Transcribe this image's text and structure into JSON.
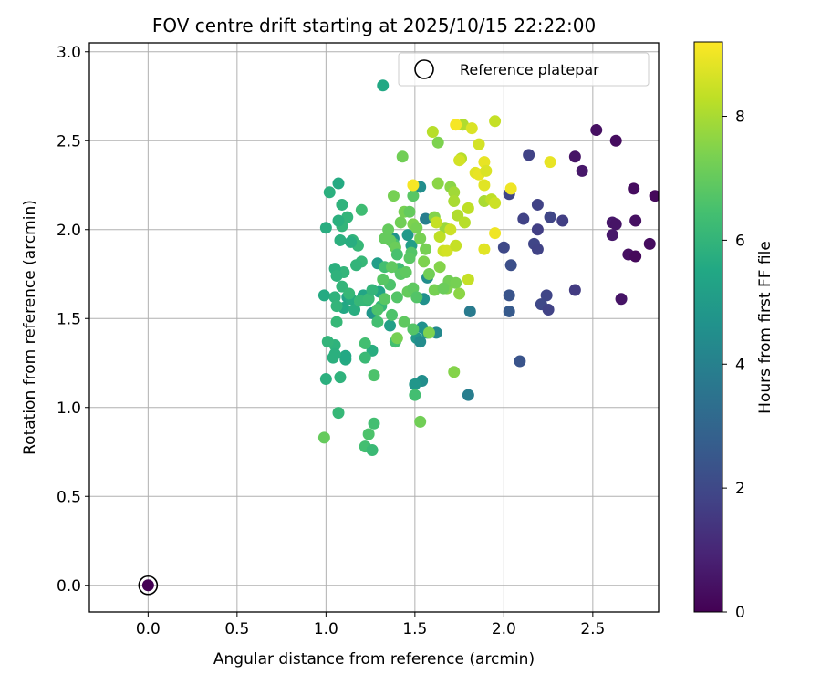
{
  "chart_data": {
    "type": "scatter",
    "title": "FOV centre drift starting at 2025/10/15 22:22:00",
    "xlabel": "Angular distance from reference (arcmin)",
    "ylabel": "Rotation from reference (arcmin)",
    "xlim": [
      -0.33,
      2.87
    ],
    "ylim": [
      -0.15,
      3.05
    ],
    "xticks": [
      "0.0",
      "0.5",
      "1.0",
      "1.5",
      "2.0",
      "2.5"
    ],
    "yticks": [
      "0.0",
      "0.5",
      "1.0",
      "1.5",
      "2.0",
      "2.5",
      "3.0"
    ],
    "grid": true,
    "legend": {
      "location": "top-right",
      "entries": [
        "Reference platepar"
      ]
    },
    "reference_point": {
      "x": 0.0,
      "y": 0.0,
      "hours": 0.0
    },
    "colorbar": {
      "label": "Hours from first FF file",
      "colormap": "viridis",
      "range": [
        0,
        9.2
      ],
      "ticks": [
        "0",
        "2",
        "4",
        "6",
        "8"
      ]
    },
    "series": [
      {
        "marker": "filled-circle",
        "points": [
          [
            2.52,
            2.56,
            0.4
          ],
          [
            2.63,
            2.5,
            0.3
          ],
          [
            2.4,
            2.41,
            0.5
          ],
          [
            2.44,
            2.33,
            0.6
          ],
          [
            2.73,
            2.23,
            0.3
          ],
          [
            2.85,
            2.19,
            0.2
          ],
          [
            2.61,
            2.04,
            0.6
          ],
          [
            2.63,
            2.03,
            0.5
          ],
          [
            2.74,
            2.05,
            0.4
          ],
          [
            2.61,
            1.97,
            0.6
          ],
          [
            2.82,
            1.92,
            0.3
          ],
          [
            2.7,
            1.86,
            0.4
          ],
          [
            2.74,
            1.85,
            0.2
          ],
          [
            2.66,
            1.61,
            0.5
          ],
          [
            2.14,
            2.42,
            1.8
          ],
          [
            2.03,
            2.2,
            1.9
          ],
          [
            2.19,
            2.14,
            1.8
          ],
          [
            2.26,
            2.07,
            1.9
          ],
          [
            2.33,
            2.05,
            1.7
          ],
          [
            2.11,
            2.06,
            1.8
          ],
          [
            2.19,
            2.0,
            1.7
          ],
          [
            2.17,
            1.92,
            1.9
          ],
          [
            2.19,
            1.89,
            1.8
          ],
          [
            2.0,
            1.9,
            2.0
          ],
          [
            2.04,
            1.8,
            2.2
          ],
          [
            2.4,
            1.66,
            1.6
          ],
          [
            2.24,
            1.63,
            1.9
          ],
          [
            2.21,
            1.58,
            2.0
          ],
          [
            2.25,
            1.55,
            1.8
          ],
          [
            2.03,
            1.63,
            2.4
          ],
          [
            2.03,
            1.54,
            2.6
          ],
          [
            2.09,
            1.26,
            2.4
          ],
          [
            1.56,
            2.06,
            3.9
          ],
          [
            1.81,
            1.54,
            3.8
          ],
          [
            1.8,
            1.07,
            3.9
          ],
          [
            1.62,
            1.42,
            4.3
          ],
          [
            1.53,
            2.24,
            4.5
          ],
          [
            1.55,
            1.61,
            4.6
          ],
          [
            1.57,
            1.73,
            4.5
          ],
          [
            1.54,
            1.45,
            4.6
          ],
          [
            1.57,
            1.42,
            4.7
          ],
          [
            1.54,
            1.15,
            4.5
          ],
          [
            1.51,
            1.39,
            4.9
          ],
          [
            1.53,
            1.37,
            4.4
          ],
          [
            1.5,
            1.13,
            4.8
          ],
          [
            1.38,
            1.95,
            4.7
          ],
          [
            1.46,
            1.97,
            4.9
          ],
          [
            1.48,
            1.91,
            5.1
          ],
          [
            1.26,
            1.53,
            4.8
          ],
          [
            1.29,
            1.81,
            5.1
          ],
          [
            1.36,
            1.46,
            5.2
          ],
          [
            1.3,
            1.65,
            5.3
          ],
          [
            1.21,
            1.63,
            5.4
          ],
          [
            1.1,
            1.56,
            5.5
          ],
          [
            1.12,
            1.62,
            5.3
          ],
          [
            1.11,
            1.27,
            5.6
          ],
          [
            1.11,
            1.29,
            5.5
          ],
          [
            1.16,
            1.55,
            5.7
          ],
          [
            1.14,
            1.61,
            5.6
          ],
          [
            1.05,
            1.35,
            5.9
          ],
          [
            1.05,
            1.3,
            5.8
          ],
          [
            1.04,
            1.28,
            5.8
          ],
          [
            1.26,
            1.32,
            5.7
          ],
          [
            1.32,
            2.81,
            5.5
          ],
          [
            1.07,
            2.26,
            5.6
          ],
          [
            1.02,
            2.21,
            5.8
          ],
          [
            1.09,
            2.14,
            5.9
          ],
          [
            1.12,
            2.07,
            6.0
          ],
          [
            1.09,
            2.02,
            6.0
          ],
          [
            1.07,
            2.05,
            5.8
          ],
          [
            1.0,
            2.01,
            5.7
          ],
          [
            1.08,
            1.94,
            5.8
          ],
          [
            1.15,
            1.94,
            6.0
          ],
          [
            1.18,
            1.91,
            6.1
          ],
          [
            1.14,
            1.93,
            5.7
          ],
          [
            1.2,
            1.82,
            6.1
          ],
          [
            1.1,
            1.76,
            6.0
          ],
          [
            1.05,
            1.78,
            5.8
          ],
          [
            1.06,
            1.74,
            5.9
          ],
          [
            1.09,
            1.68,
            6.0
          ],
          [
            1.05,
            1.62,
            5.9
          ],
          [
            0.99,
            1.63,
            5.6
          ],
          [
            1.01,
            1.37,
            6.0
          ],
          [
            1.0,
            1.16,
            5.8
          ],
          [
            1.08,
            1.17,
            5.9
          ],
          [
            1.07,
            0.97,
            6.1
          ],
          [
            1.2,
            2.11,
            6.3
          ],
          [
            1.23,
            1.6,
            6.0
          ],
          [
            1.13,
            1.64,
            6.1
          ],
          [
            1.19,
            1.6,
            6.1
          ],
          [
            1.31,
            1.57,
            6.1
          ],
          [
            1.24,
            1.61,
            6.2
          ],
          [
            1.26,
            1.66,
            6.0
          ],
          [
            1.17,
            1.8,
            6.0
          ],
          [
            1.33,
            1.79,
            6.4
          ],
          [
            1.41,
            1.78,
            6.3
          ],
          [
            1.38,
            1.92,
            6.5
          ],
          [
            1.29,
            1.48,
            6.4
          ],
          [
            1.39,
            1.37,
            6.4
          ],
          [
            1.06,
            1.57,
            6.0
          ],
          [
            1.06,
            1.48,
            6.1
          ],
          [
            1.22,
            1.36,
            6.4
          ],
          [
            1.22,
            1.28,
            6.2
          ],
          [
            1.27,
            1.18,
            6.6
          ],
          [
            1.22,
            0.78,
            6.4
          ],
          [
            1.24,
            0.85,
            6.6
          ],
          [
            1.27,
            0.91,
            6.4
          ],
          [
            1.26,
            0.76,
            6.2
          ],
          [
            0.99,
            0.83,
            7.0
          ],
          [
            1.53,
            0.92,
            7.2
          ],
          [
            1.5,
            1.07,
            6.4
          ],
          [
            1.72,
            1.2,
            7.5
          ],
          [
            1.58,
            1.42,
            7.4
          ],
          [
            1.4,
            1.39,
            7.3
          ],
          [
            1.29,
            1.55,
            6.6
          ],
          [
            1.33,
            1.61,
            6.8
          ],
          [
            1.37,
            1.52,
            6.6
          ],
          [
            1.36,
            1.69,
            6.6
          ],
          [
            1.4,
            1.62,
            6.7
          ],
          [
            1.37,
            1.79,
            6.9
          ],
          [
            1.42,
            1.75,
            6.8
          ],
          [
            1.45,
            1.76,
            6.9
          ],
          [
            1.48,
            1.87,
            6.7
          ],
          [
            1.46,
            1.65,
            7.0
          ],
          [
            1.49,
            1.67,
            6.9
          ],
          [
            1.51,
            1.62,
            6.7
          ],
          [
            1.49,
            1.44,
            6.7
          ],
          [
            1.44,
            1.48,
            6.9
          ],
          [
            1.32,
            1.72,
            6.8
          ],
          [
            1.33,
            1.95,
            7.0
          ],
          [
            1.35,
            2.0,
            7.0
          ],
          [
            1.36,
            1.94,
            7.0
          ],
          [
            1.39,
            1.9,
            7.1
          ],
          [
            1.42,
            2.04,
            7.2
          ],
          [
            1.44,
            2.1,
            7.3
          ],
          [
            1.47,
            2.1,
            7.0
          ],
          [
            1.49,
            2.19,
            6.8
          ],
          [
            1.38,
            2.19,
            7.3
          ],
          [
            1.49,
            2.03,
            7.4
          ],
          [
            1.51,
            2.01,
            7.3
          ],
          [
            1.53,
            1.95,
            7.3
          ],
          [
            1.55,
            1.82,
            7.4
          ],
          [
            1.61,
            1.66,
            7.3
          ],
          [
            1.64,
            1.79,
            7.5
          ],
          [
            1.68,
            1.67,
            7.4
          ],
          [
            1.69,
            1.71,
            7.2
          ],
          [
            1.73,
            1.7,
            7.3
          ],
          [
            1.75,
            1.64,
            7.6
          ],
          [
            1.61,
            2.07,
            7.5
          ],
          [
            1.63,
            2.26,
            7.6
          ],
          [
            1.63,
            2.49,
            7.4
          ],
          [
            1.67,
            2.01,
            7.8
          ],
          [
            1.7,
            2.24,
            7.6
          ],
          [
            1.72,
            2.21,
            7.9
          ],
          [
            1.72,
            2.16,
            8.0
          ],
          [
            1.74,
            2.08,
            8.1
          ],
          [
            1.76,
            2.4,
            8.2
          ],
          [
            1.77,
            2.59,
            8.1
          ],
          [
            1.78,
            2.04,
            8.2
          ],
          [
            1.8,
            2.12,
            8.3
          ],
          [
            1.6,
            2.55,
            8.2
          ],
          [
            1.62,
            2.04,
            8.4
          ],
          [
            1.64,
            1.96,
            8.3
          ],
          [
            1.66,
            1.88,
            8.5
          ],
          [
            1.68,
            1.88,
            8.6
          ],
          [
            1.7,
            2.0,
            8.5
          ],
          [
            1.73,
            1.91,
            8.4
          ],
          [
            1.75,
            2.39,
            8.6
          ],
          [
            1.8,
            1.72,
            8.4
          ],
          [
            1.82,
            2.57,
            8.7
          ],
          [
            1.84,
            2.32,
            8.8
          ],
          [
            1.86,
            2.31,
            8.9
          ],
          [
            1.86,
            2.48,
            8.6
          ],
          [
            1.89,
            2.38,
            8.9
          ],
          [
            1.89,
            2.25,
            8.8
          ],
          [
            1.9,
            2.33,
            8.7
          ],
          [
            1.89,
            2.16,
            8.0
          ],
          [
            1.93,
            2.17,
            8.3
          ],
          [
            1.95,
            2.15,
            8.5
          ],
          [
            1.95,
            2.61,
            8.4
          ],
          [
            1.95,
            1.98,
            9.0
          ],
          [
            1.89,
            1.89,
            8.8
          ],
          [
            1.73,
            2.59,
            9.1
          ],
          [
            1.49,
            2.25,
            9.1
          ],
          [
            2.04,
            2.23,
            9.0
          ],
          [
            2.26,
            2.38,
            8.9
          ],
          [
            1.66,
            1.67,
            7.1
          ],
          [
            1.58,
            1.75,
            7.2
          ],
          [
            1.56,
            1.89,
            7.3
          ],
          [
            1.47,
            1.84,
            6.8
          ],
          [
            1.43,
            2.41,
            7.2
          ],
          [
            1.4,
            1.86,
            6.5
          ]
        ]
      }
    ]
  }
}
